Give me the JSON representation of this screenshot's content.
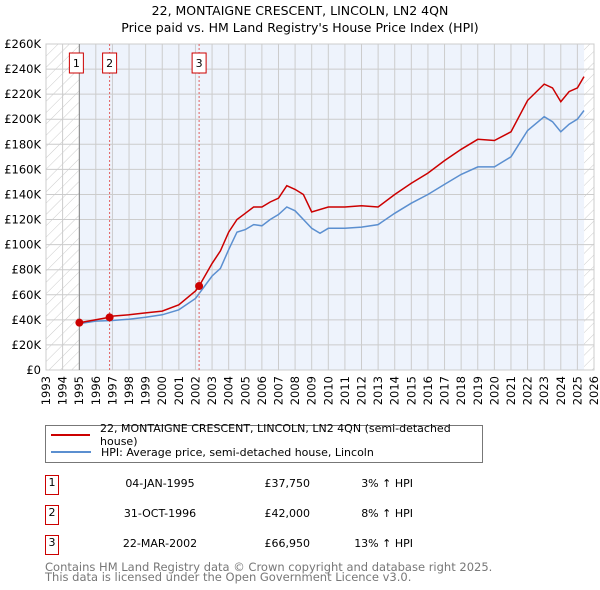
{
  "chart_data": {
    "type": "line",
    "title": "22, MONTAIGNE CRESCENT, LINCOLN, LN2 4QN",
    "subtitle": "Price paid vs. HM Land Registry's House Price Index (HPI)",
    "xlim": [
      1993,
      2026
    ],
    "ylim": [
      0,
      260000
    ],
    "x_ticks": [
      "1993",
      "1994",
      "1995",
      "1996",
      "1997",
      "1998",
      "1999",
      "2000",
      "2001",
      "2002",
      "2003",
      "2004",
      "2005",
      "2006",
      "2007",
      "2008",
      "2009",
      "2010",
      "2011",
      "2012",
      "2013",
      "2014",
      "2015",
      "2016",
      "2017",
      "2018",
      "2019",
      "2020",
      "2021",
      "2022",
      "2023",
      "2024",
      "2025",
      "2026"
    ],
    "y_ticks": [
      "£0",
      "£20K",
      "£40K",
      "£60K",
      "£80K",
      "£100K",
      "£120K",
      "£140K",
      "£160K",
      "£180K",
      "£200K",
      "£220K",
      "£240K",
      "£260K"
    ],
    "grid": true,
    "series": [
      {
        "name": "22, MONTAIGNE CRESCENT, LINCOLN, LN2 4QN (semi-detached house)",
        "color": "#cc0000",
        "x": [
          1995,
          1996,
          1996.83,
          1997,
          1998,
          1999,
          2000,
          2001,
          2002,
          2002.22,
          2003,
          2003.5,
          2004,
          2004.5,
          2005,
          2005.5,
          2006,
          2006.5,
          2007,
          2007.5,
          2008,
          2008.5,
          2009,
          2010,
          2011,
          2012,
          2013,
          2014,
          2015,
          2016,
          2017,
          2018,
          2019,
          2020,
          2021,
          2022,
          2023,
          2023.5,
          2024,
          2024.5,
          2025,
          2025.4
        ],
        "y": [
          37750,
          40000,
          42000,
          43000,
          44000,
          45500,
          47000,
          52000,
          63000,
          66950,
          85000,
          95000,
          110000,
          120000,
          125000,
          130000,
          130000,
          134000,
          137000,
          147000,
          144000,
          140000,
          126000,
          130000,
          130000,
          131000,
          130000,
          140000,
          149000,
          157000,
          167000,
          176000,
          184000,
          183000,
          190000,
          215000,
          228000,
          225000,
          214000,
          222000,
          225000,
          234000
        ]
      },
      {
        "name": "HPI: Average price, semi-detached house, Lincoln",
        "color": "#5b8fd0",
        "x": [
          1995,
          1996,
          1997,
          1998,
          1999,
          2000,
          2001,
          2002,
          2003,
          2003.5,
          2004,
          2004.5,
          2005,
          2005.5,
          2006,
          2006.5,
          2007,
          2007.5,
          2008,
          2008.5,
          2009,
          2009.5,
          2010,
          2011,
          2012,
          2013,
          2014,
          2015,
          2016,
          2017,
          2018,
          2019,
          2020,
          2021,
          2022,
          2023,
          2023.5,
          2024,
          2024.5,
          2025,
          2025.4
        ],
        "y": [
          37000,
          39000,
          39500,
          40500,
          42000,
          44000,
          48000,
          57000,
          75000,
          81000,
          96000,
          110000,
          112000,
          116000,
          115000,
          120000,
          124000,
          130000,
          127000,
          120000,
          113000,
          109000,
          113000,
          113000,
          114000,
          116000,
          125000,
          133000,
          140000,
          148000,
          156000,
          162000,
          162000,
          170000,
          191000,
          202000,
          198000,
          190000,
          196000,
          200000,
          207000
        ]
      }
    ],
    "sales": [
      {
        "label": "1",
        "x": 1995.01,
        "y": 37750
      },
      {
        "label": "2",
        "x": 1996.83,
        "y": 42000
      },
      {
        "label": "3",
        "x": 2002.22,
        "y": 66950
      }
    ],
    "shaded_range": [
      1995.01,
      2025.4
    ],
    "legend_placement": "below"
  },
  "legend": [
    "22, MONTAIGNE CRESCENT, LINCOLN, LN2 4QN (semi-detached house)",
    "HPI: Average price, semi-detached house, Lincoln"
  ],
  "table": [
    {
      "num": "1",
      "date": "04-JAN-1995",
      "price": "£37,750",
      "hpi": "3% ↑ HPI"
    },
    {
      "num": "2",
      "date": "31-OCT-1996",
      "price": "£42,000",
      "hpi": "8% ↑ HPI"
    },
    {
      "num": "3",
      "date": "22-MAR-2002",
      "price": "£66,950",
      "hpi": "13% ↑ HPI"
    }
  ],
  "footer": [
    "Contains HM Land Registry data © Crown copyright and database right 2025.",
    "This data is licensed under the Open Government Licence v3.0."
  ]
}
